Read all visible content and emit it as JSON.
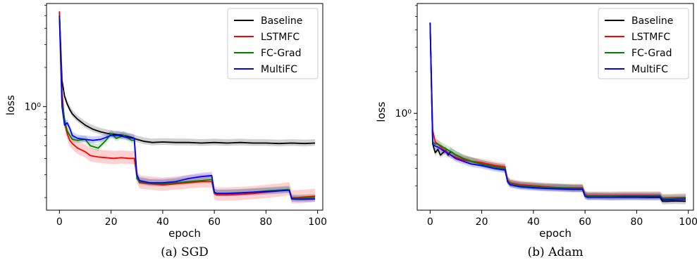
{
  "chart_data": [
    {
      "type": "line",
      "caption": "(a) SGD",
      "xlabel": "epoch",
      "ylabel": "loss",
      "yscale": "log",
      "xlim": [
        -5,
        102
      ],
      "ylim": [
        0.16,
        6.2
      ],
      "xticks": [
        0,
        20,
        40,
        60,
        80,
        100
      ],
      "xtick_labels": [
        "0",
        "20",
        "40",
        "60",
        "80",
        "100"
      ],
      "yticks": [
        1.0
      ],
      "ytick_labels": [
        "10⁰"
      ],
      "grid": false,
      "legend": "top-right",
      "series": [
        {
          "name": "Baseline",
          "color": "#000000",
          "x": [
            0,
            1,
            2,
            3,
            4,
            5,
            7,
            10,
            13,
            16,
            19,
            22,
            25,
            28,
            30,
            33,
            36,
            40,
            45,
            50,
            55,
            60,
            65,
            70,
            75,
            80,
            85,
            90,
            95,
            99
          ],
          "y": [
            5.3,
            1.6,
            1.2,
            1.05,
            0.95,
            0.88,
            0.8,
            0.72,
            0.67,
            0.64,
            0.62,
            0.61,
            0.6,
            0.58,
            0.56,
            0.54,
            0.53,
            0.535,
            0.53,
            0.53,
            0.525,
            0.53,
            0.525,
            0.53,
            0.525,
            0.525,
            0.52,
            0.525,
            0.52,
            0.525
          ]
        },
        {
          "name": "LSTMFC",
          "color": "#ff0000",
          "x": [
            0,
            1,
            2,
            3,
            4,
            5,
            7,
            10,
            12,
            15,
            18,
            21,
            24,
            27,
            29,
            30,
            31,
            35,
            40,
            45,
            50,
            55,
            59,
            60,
            61,
            65,
            70,
            75,
            80,
            85,
            88,
            89,
            90,
            92,
            95,
            99
          ],
          "y": [
            5.4,
            1.3,
            0.75,
            0.62,
            0.55,
            0.52,
            0.48,
            0.45,
            0.42,
            0.41,
            0.405,
            0.4,
            0.405,
            0.4,
            0.4,
            0.29,
            0.26,
            0.255,
            0.25,
            0.255,
            0.26,
            0.265,
            0.265,
            0.215,
            0.21,
            0.21,
            0.212,
            0.215,
            0.22,
            0.225,
            0.23,
            0.23,
            0.2,
            0.2,
            0.202,
            0.205
          ]
        },
        {
          "name": "FC-Grad",
          "color": "#008000",
          "x": [
            0,
            1,
            2,
            3,
            4,
            5,
            7,
            10,
            12,
            15,
            18,
            20,
            22,
            25,
            28,
            29,
            30,
            31,
            35,
            40,
            45,
            50,
            55,
            59,
            60,
            61,
            65,
            70,
            75,
            80,
            85,
            88,
            89,
            90,
            92,
            95,
            99
          ],
          "y": [
            5.0,
            1.1,
            0.8,
            0.65,
            0.6,
            0.56,
            0.55,
            0.56,
            0.5,
            0.48,
            0.55,
            0.62,
            0.57,
            0.6,
            0.55,
            0.55,
            0.28,
            0.265,
            0.258,
            0.255,
            0.26,
            0.265,
            0.27,
            0.275,
            0.218,
            0.215,
            0.215,
            0.218,
            0.22,
            0.225,
            0.228,
            0.23,
            0.23,
            0.198,
            0.197,
            0.198,
            0.2
          ]
        },
        {
          "name": "MultiFC",
          "color": "#0000ff",
          "x": [
            0,
            1,
            2,
            3,
            4,
            5,
            7,
            10,
            13,
            16,
            20,
            23,
            26,
            29,
            30,
            31,
            35,
            40,
            45,
            50,
            55,
            59,
            60,
            61,
            65,
            70,
            75,
            80,
            85,
            88,
            89,
            90,
            92,
            95,
            99
          ],
          "y": [
            5.0,
            1.0,
            0.72,
            0.75,
            0.68,
            0.6,
            0.57,
            0.56,
            0.55,
            0.56,
            0.6,
            0.6,
            0.58,
            0.57,
            0.3,
            0.27,
            0.26,
            0.26,
            0.265,
            0.28,
            0.29,
            0.295,
            0.22,
            0.215,
            0.215,
            0.217,
            0.22,
            0.222,
            0.225,
            0.227,
            0.227,
            0.195,
            0.194,
            0.194,
            0.195
          ]
        }
      ]
    },
    {
      "type": "line",
      "caption": "(b) Adam",
      "xlabel": "epoch",
      "ylabel": "loss",
      "yscale": "log",
      "xlim": [
        -5,
        102
      ],
      "ylim": [
        0.2,
        6.2
      ],
      "xticks": [
        0,
        20,
        40,
        60,
        80,
        100
      ],
      "xtick_labels": [
        "0",
        "20",
        "40",
        "60",
        "80",
        "100"
      ],
      "yticks": [
        1.0
      ],
      "ytick_labels": [
        "10⁰"
      ],
      "grid": false,
      "legend": "top-right",
      "series": [
        {
          "name": "Baseline",
          "color": "#000000",
          "x": [
            0,
            1,
            2,
            3,
            4,
            5,
            6,
            7,
            8,
            10,
            13,
            16,
            20,
            25,
            29,
            30,
            31,
            35,
            40,
            45,
            50,
            55,
            59,
            60,
            61,
            65,
            70,
            75,
            80,
            85,
            89,
            90,
            92,
            95,
            99
          ],
          "y": [
            4.5,
            0.6,
            0.52,
            0.55,
            0.5,
            0.52,
            0.54,
            0.5,
            0.53,
            0.5,
            0.47,
            0.45,
            0.43,
            0.41,
            0.4,
            0.33,
            0.31,
            0.3,
            0.295,
            0.29,
            0.29,
            0.285,
            0.285,
            0.255,
            0.25,
            0.25,
            0.248,
            0.248,
            0.248,
            0.247,
            0.247,
            0.232,
            0.232,
            0.233,
            0.232
          ]
        },
        {
          "name": "LSTMFC",
          "color": "#ff0000",
          "x": [
            0,
            1,
            2,
            3,
            5,
            8,
            10,
            13,
            16,
            20,
            25,
            29,
            30,
            31,
            35,
            40,
            45,
            50,
            55,
            59,
            60,
            61,
            65,
            70,
            75,
            80,
            85,
            89,
            90,
            92,
            95,
            99
          ],
          "y": [
            4.5,
            0.75,
            0.62,
            0.6,
            0.55,
            0.5,
            0.48,
            0.46,
            0.45,
            0.44,
            0.42,
            0.41,
            0.33,
            0.315,
            0.305,
            0.3,
            0.295,
            0.29,
            0.29,
            0.29,
            0.26,
            0.255,
            0.255,
            0.255,
            0.256,
            0.256,
            0.256,
            0.256,
            0.245,
            0.245,
            0.246,
            0.247
          ]
        },
        {
          "name": "FC-Grad",
          "color": "#008000",
          "x": [
            0,
            1,
            2,
            3,
            5,
            8,
            10,
            13,
            16,
            20,
            25,
            29,
            30,
            31,
            35,
            40,
            45,
            50,
            55,
            59,
            60,
            61,
            65,
            70,
            75,
            80,
            85,
            89,
            90,
            92,
            95,
            99
          ],
          "y": [
            4.5,
            0.62,
            0.6,
            0.6,
            0.57,
            0.53,
            0.5,
            0.47,
            0.45,
            0.43,
            0.41,
            0.4,
            0.325,
            0.31,
            0.3,
            0.296,
            0.292,
            0.29,
            0.288,
            0.287,
            0.257,
            0.253,
            0.252,
            0.252,
            0.253,
            0.253,
            0.253,
            0.254,
            0.243,
            0.243,
            0.244,
            0.245
          ]
        },
        {
          "name": "MultiFC",
          "color": "#0000ff",
          "x": [
            0,
            1,
            2,
            3,
            5,
            8,
            10,
            13,
            16,
            20,
            25,
            29,
            30,
            31,
            35,
            40,
            45,
            50,
            55,
            59,
            60,
            61,
            65,
            70,
            75,
            80,
            85,
            89,
            90,
            92,
            95,
            99
          ],
          "y": [
            4.5,
            0.6,
            0.58,
            0.57,
            0.54,
            0.5,
            0.47,
            0.45,
            0.43,
            0.42,
            0.4,
            0.39,
            0.32,
            0.305,
            0.295,
            0.29,
            0.287,
            0.285,
            0.283,
            0.283,
            0.252,
            0.248,
            0.248,
            0.248,
            0.249,
            0.249,
            0.249,
            0.25,
            0.238,
            0.238,
            0.239,
            0.24
          ]
        }
      ]
    }
  ]
}
